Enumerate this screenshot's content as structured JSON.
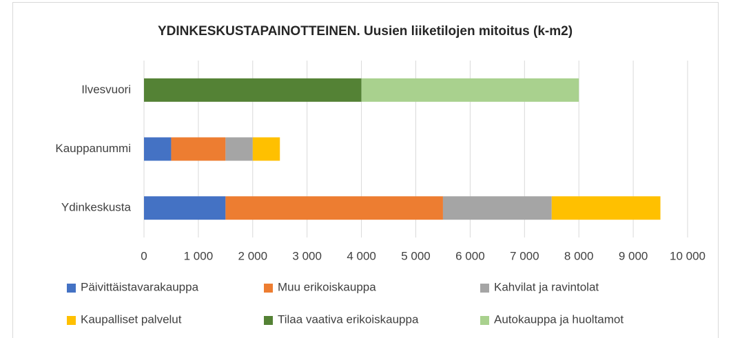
{
  "chart_data": {
    "type": "bar",
    "orientation": "horizontal",
    "stacked": true,
    "title": "YDINKESKUSTAPAINOTTEINEN. Uusien liiketilojen mitoitus (k-m2)",
    "categories": [
      "Ilvesvuori",
      "Kauppanummi",
      "Ydinkeskusta"
    ],
    "series": [
      {
        "name": "Päivittäistavarakauppa",
        "color": "#4472c4",
        "values": [
          0,
          500,
          1500
        ]
      },
      {
        "name": "Muu erikoiskauppa",
        "color": "#ed7d31",
        "values": [
          0,
          1000,
          4000
        ]
      },
      {
        "name": "Kahvilat ja ravintolat",
        "color": "#a5a5a5",
        "values": [
          0,
          500,
          2000
        ]
      },
      {
        "name": "Kaupalliset palvelut",
        "color": "#ffc000",
        "values": [
          0,
          500,
          2000
        ]
      },
      {
        "name": "Tilaa vaativa erikoiskauppa",
        "color": "#548235",
        "values": [
          4000,
          0,
          0
        ]
      },
      {
        "name": "Autokauppa ja huoltamot",
        "color": "#a9d18e",
        "values": [
          4000,
          0,
          0
        ]
      }
    ],
    "xlim": [
      0,
      10000
    ],
    "xticks": [
      0,
      {
        "value": 1000,
        "label": "1 000"
      },
      {
        "value": 2000,
        "label": "2 000"
      },
      {
        "value": 3000,
        "label": "3 000"
      },
      {
        "value": 4000,
        "label": "4 000"
      },
      {
        "value": 5000,
        "label": "5 000"
      },
      {
        "value": 6000,
        "label": "6 000"
      },
      {
        "value": 7000,
        "label": "7 000"
      },
      {
        "value": 8000,
        "label": "8 000"
      },
      {
        "value": 9000,
        "label": "9 000"
      },
      {
        "value": 10000,
        "label": "10 000"
      }
    ],
    "grid": true,
    "legend": "bottom"
  }
}
